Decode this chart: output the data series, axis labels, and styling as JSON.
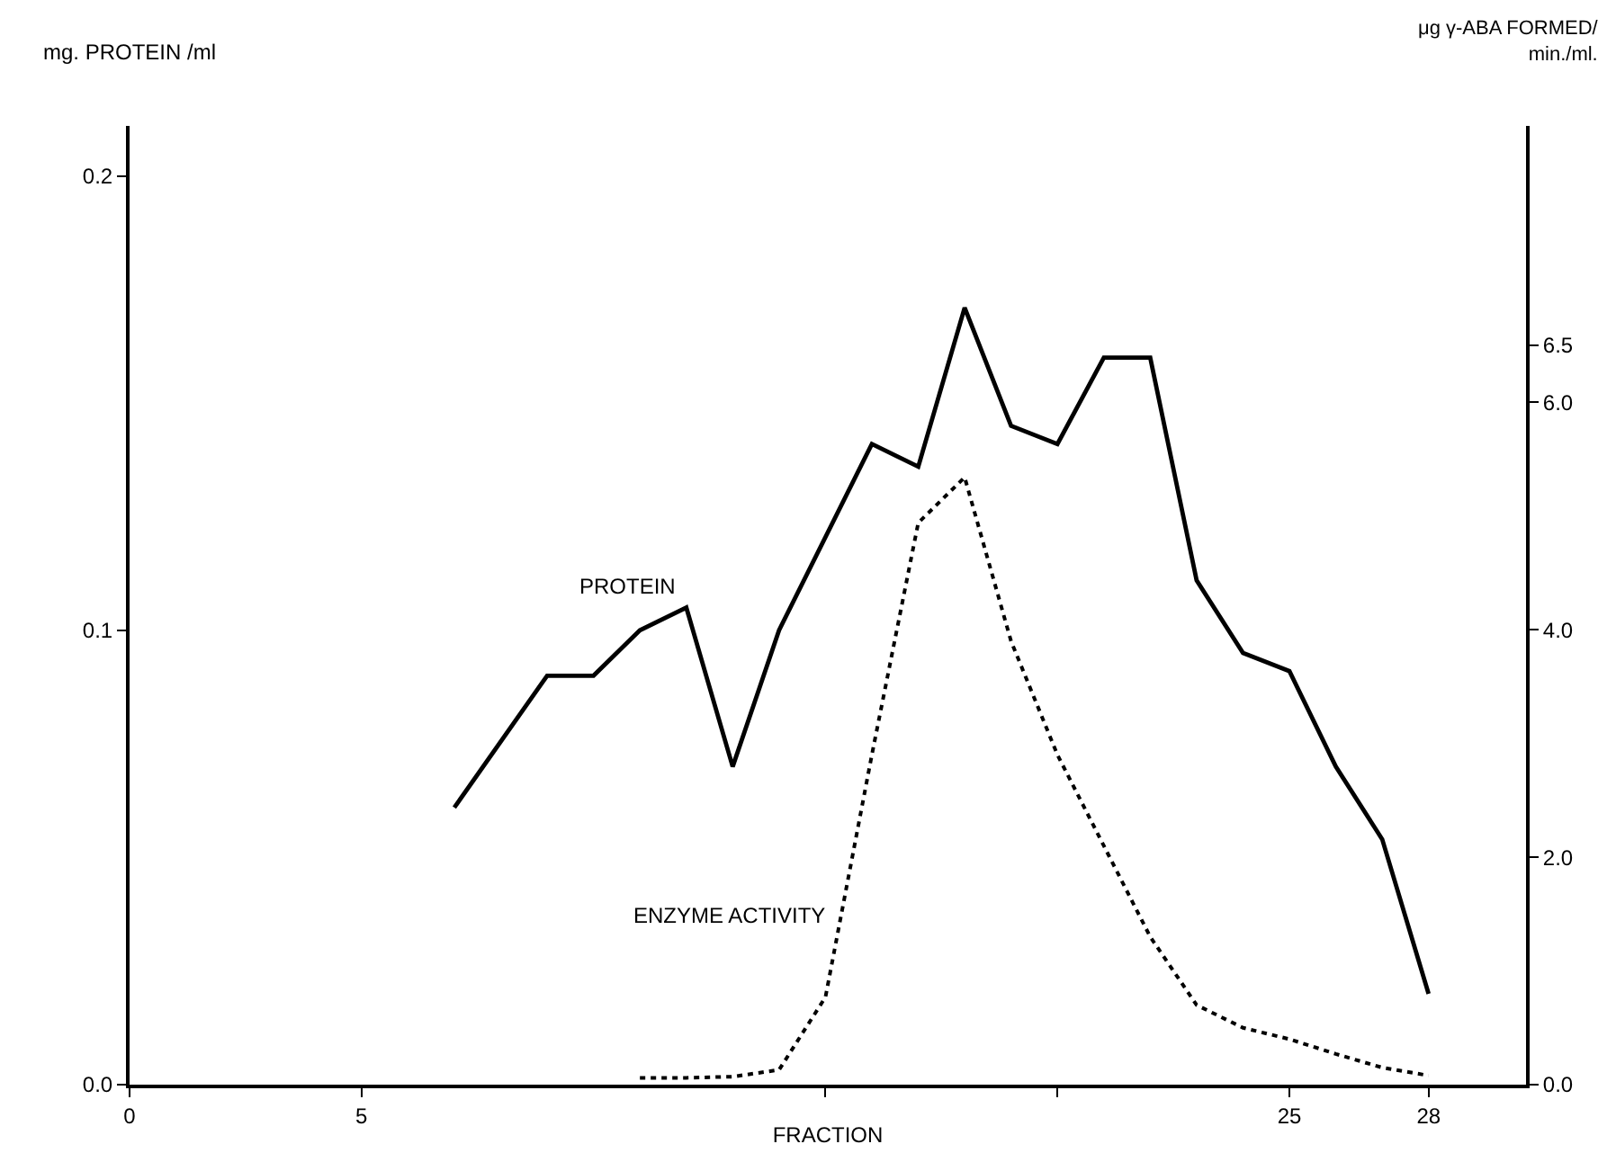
{
  "chart_data": {
    "type": "line",
    "xlabel": "FRACTION",
    "ylabel": "mg. PROTEIN /ml",
    "y2label": "μg γ-ABA FORMED/\nmin./ml.",
    "xlim": [
      0,
      30.1
    ],
    "xticks": [
      0,
      5,
      {
        "value": 15,
        "label": null
      },
      {
        "value": 20,
        "label": null
      },
      25,
      28
    ],
    "ylim": [
      0,
      0.211
    ],
    "yticks": [
      {
        "value": 0,
        "label": "0.0"
      },
      0.1,
      0.2
    ],
    "y2lim": [
      0,
      8.43
    ],
    "y2ticks": [
      {
        "value": 0,
        "label": "0.0"
      },
      {
        "value": 2,
        "label": "2.0"
      },
      {
        "value": 4,
        "label": "4.0"
      },
      {
        "value": 6,
        "label": "6.0"
      },
      6.5
    ],
    "legend": false,
    "marker": "none",
    "series": [
      {
        "name": "PROTEIN",
        "color": "#000000",
        "line_style": "solid",
        "x": [
          7,
          9,
          10,
          11,
          12,
          13,
          14,
          16,
          17,
          18,
          19,
          20,
          21,
          22,
          23,
          24,
          25,
          26,
          27,
          28
        ],
        "values": [
          0.061,
          0.09,
          0.09,
          0.1,
          0.105,
          0.07,
          0.1,
          0.141,
          0.136,
          0.171,
          0.145,
          0.141,
          0.16,
          0.16,
          0.111,
          0.095,
          0.091,
          0.07,
          0.054,
          0.02
        ]
      },
      {
        "name": "ENZYME ACTIVITY",
        "color": "#000000",
        "line_style": "dotted",
        "axis": "y2",
        "x": [
          11,
          12,
          13,
          14,
          15,
          16,
          17,
          18,
          19,
          20,
          21,
          22,
          23,
          24,
          25,
          26,
          27,
          28
        ],
        "values": [
          0.06,
          0.06,
          0.07,
          0.13,
          0.77,
          2.9,
          4.94,
          5.34,
          3.9,
          2.9,
          2.1,
          1.3,
          0.7,
          0.5,
          0.4,
          0.27,
          0.15,
          0.08
        ]
      }
    ]
  }
}
